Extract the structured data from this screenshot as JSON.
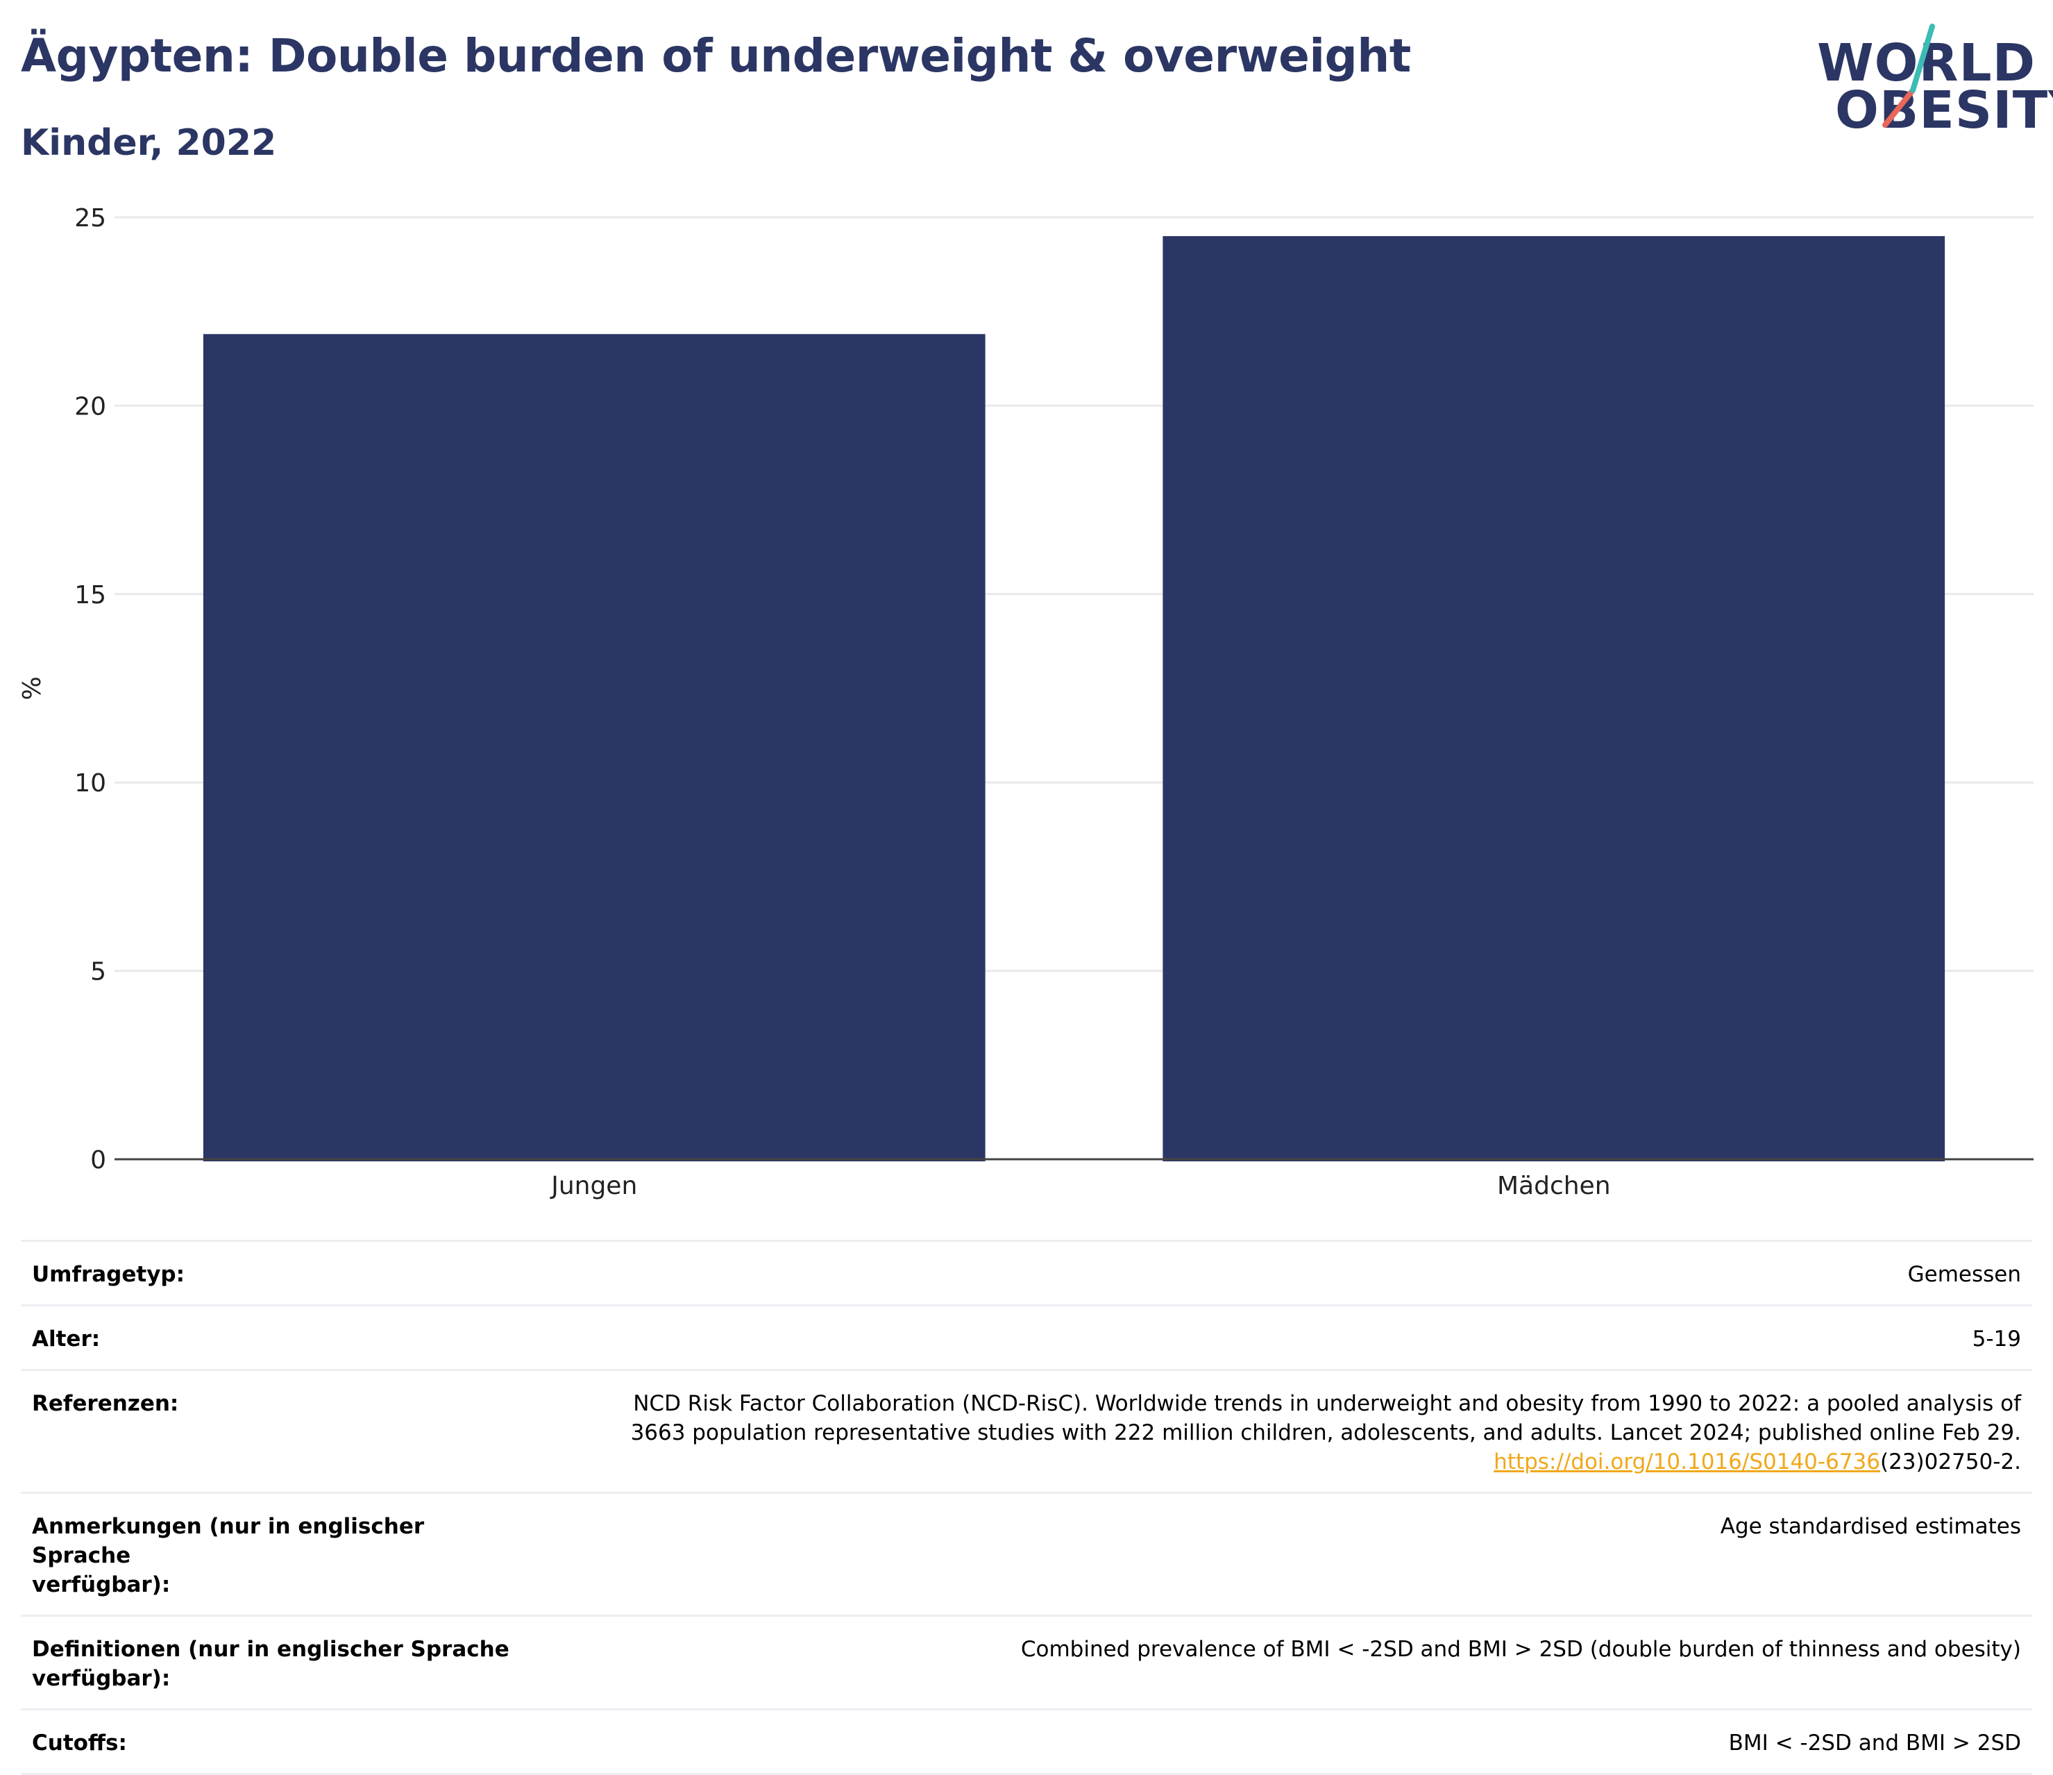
{
  "header": {
    "title": "Ägypten: Double burden of underweight & overweight",
    "subtitle": "Kinder, 2022"
  },
  "logo": {
    "line1": "WORLD",
    "line2": "OBESITY",
    "colors": {
      "text": "#2b3664",
      "slash_top": "#3bbcb4",
      "slash_bottom": "#e9675a"
    }
  },
  "chart_data": {
    "type": "bar",
    "categories": [
      "Jungen",
      "Mädchen"
    ],
    "values": [
      21.9,
      24.5
    ],
    "title": "",
    "xlabel": "",
    "ylabel": "%",
    "ylim": [
      0,
      25
    ],
    "yticks": [
      0,
      5,
      10,
      15,
      20,
      25
    ],
    "grid": true,
    "bar_color": "#2b3664"
  },
  "meta": {
    "rows": [
      {
        "key": "Umfragetyp:",
        "value": "Gemessen"
      },
      {
        "key": "Alter:",
        "value": "5-19"
      },
      {
        "key": "Referenzen:",
        "value_line1": "NCD Risk Factor Collaboration (NCD-RisC). Worldwide trends in underweight and obesity from 1990 to 2022: a pooled analysis of",
        "value_line2": "3663 population representative studies with 222 million children, adolescents, and adults. Lancet 2024; published online Feb 29.",
        "link_text": "https://doi.org/10.1016/S0140-6736",
        "link_suffix": "(23)02750-2."
      },
      {
        "key_line1": "Anmerkungen (nur in englischer Sprache",
        "key_line2": "verfügbar):",
        "value": "Age standardised estimates"
      },
      {
        "key_line1": "Definitionen (nur in englischer Sprache",
        "key_line2": "verfügbar):",
        "value": "Combined prevalence of BMI < -2SD and BMI > 2SD (double burden of thinness and obesity)"
      },
      {
        "key": "Cutoffs:",
        "value": "BMI < -2SD and BMI > 2SD"
      }
    ]
  }
}
